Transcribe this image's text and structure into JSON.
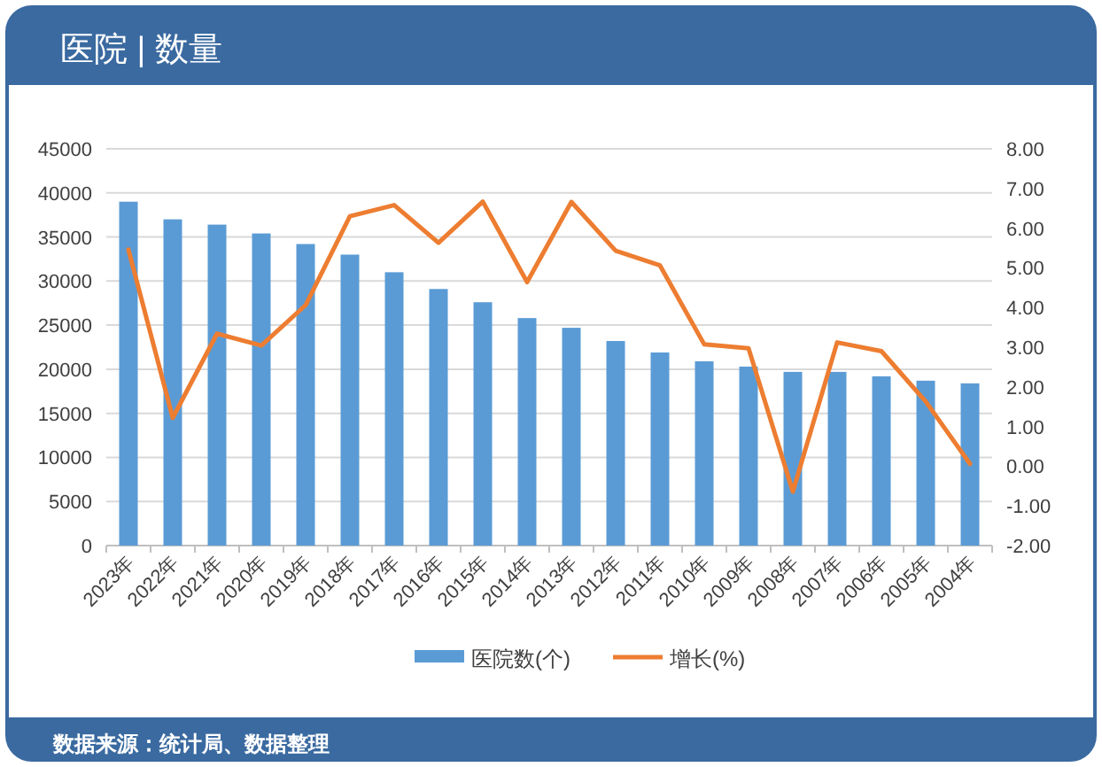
{
  "chart_data": {
    "type": "bar",
    "title": "医院 | 数量",
    "categories": [
      "2023年",
      "2022年",
      "2021年",
      "2020年",
      "2019年",
      "2018年",
      "2017年",
      "2016年",
      "2015年",
      "2014年",
      "2013年",
      "2012年",
      "2011年",
      "2010年",
      "2009年",
      "2008年",
      "2007年",
      "2006年",
      "2005年",
      "2004年"
    ],
    "series": [
      {
        "name": "医院数(个)",
        "color": "#5b9bd5",
        "values": [
          39000,
          37000,
          36400,
          35400,
          34200,
          33000,
          31000,
          29100,
          27600,
          25800,
          24700,
          23200,
          21900,
          20900,
          20300,
          19700,
          19700,
          19200,
          18700,
          18400
        ]
      },
      {
        "name": "增长(%)",
        "type": "line",
        "axis": "y2",
        "color": "#ed7d31",
        "values": [
          5.46,
          1.22,
          3.34,
          3.04,
          4.06,
          6.3,
          6.58,
          5.63,
          6.67,
          4.64,
          6.66,
          5.43,
          5.06,
          3.07,
          2.97,
          -0.64,
          3.12,
          2.9,
          1.63,
          0.06
        ]
      }
    ],
    "ylim": [
      0,
      45000
    ],
    "yticks": [
      0,
      5000,
      10000,
      15000,
      20000,
      25000,
      30000,
      35000,
      40000,
      45000
    ],
    "y2lim": [
      -2,
      8
    ],
    "y2ticks": [
      {
        "value": -2,
        "label": "-2.00"
      },
      {
        "value": -1,
        "label": "-1.00"
      },
      {
        "value": 0,
        "label": "0.00"
      },
      {
        "value": 1,
        "label": "1.00"
      },
      {
        "value": 2,
        "label": "2.00"
      },
      {
        "value": 3,
        "label": "3.00"
      },
      {
        "value": 4,
        "label": "4.00"
      },
      {
        "value": 5,
        "label": "5.00"
      },
      {
        "value": 6,
        "label": "6.00"
      },
      {
        "value": 7,
        "label": "7.00"
      },
      {
        "value": 8,
        "label": "8.00"
      }
    ],
    "grid": "y",
    "legend": "bottom",
    "annotations": [
      "数据来源：统计局、数据整理"
    ]
  }
}
